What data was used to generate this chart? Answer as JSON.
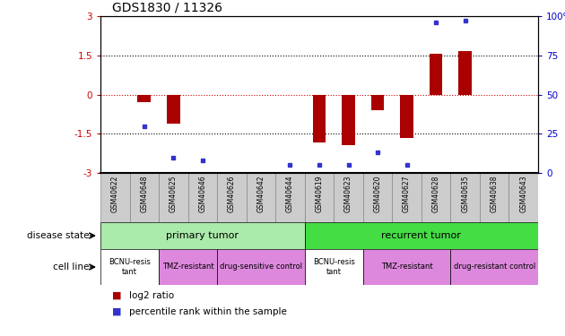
{
  "title": "GDS1830 / 11326",
  "samples": [
    "GSM40622",
    "GSM40648",
    "GSM40625",
    "GSM40646",
    "GSM40626",
    "GSM40642",
    "GSM40644",
    "GSM40619",
    "GSM40623",
    "GSM40620",
    "GSM40627",
    "GSM40628",
    "GSM40635",
    "GSM40638",
    "GSM40643"
  ],
  "log2_ratio": [
    0,
    -0.3,
    -1.1,
    0,
    0,
    0,
    0,
    -1.85,
    -1.95,
    -0.6,
    -1.65,
    1.55,
    1.65,
    0,
    0
  ],
  "percentile_rank": [
    null,
    30,
    10,
    8,
    null,
    null,
    5,
    5,
    5,
    13,
    5,
    96,
    97,
    null,
    null
  ],
  "ylim": [
    -3,
    3
  ],
  "y_left_ticks": [
    -3,
    -1.5,
    0,
    1.5,
    3
  ],
  "y_right_ticks": [
    0,
    25,
    50,
    75,
    100
  ],
  "bar_color": "#aa0000",
  "dot_color": "#3333cc",
  "disease_state_groups": [
    {
      "label": "primary tumor",
      "start": 0,
      "end": 7,
      "color": "#aaeaaa"
    },
    {
      "label": "recurrent tumor",
      "start": 7,
      "end": 15,
      "color": "#44dd44"
    }
  ],
  "cell_line_groups": [
    {
      "label": "BCNU-resis\ntant",
      "start": 0,
      "end": 2,
      "color": "#ffffff"
    },
    {
      "label": "TMZ-resistant",
      "start": 2,
      "end": 4,
      "color": "#dd88dd"
    },
    {
      "label": "drug-sensitive control",
      "start": 4,
      "end": 7,
      "color": "#dd88dd"
    },
    {
      "label": "BCNU-resis\ntant",
      "start": 7,
      "end": 9,
      "color": "#ffffff"
    },
    {
      "label": "TMZ-resistant",
      "start": 9,
      "end": 12,
      "color": "#dd88dd"
    },
    {
      "label": "drug-resistant control",
      "start": 12,
      "end": 15,
      "color": "#dd88dd"
    }
  ],
  "label_disease_state": "disease state",
  "label_cell_line": "cell line",
  "legend_log2": "log2 ratio",
  "legend_pct": "percentile rank within the sample",
  "tick_color_left": "#cc0000",
  "tick_color_right": "#0000cc",
  "sample_box_color": "#cccccc",
  "sample_box_edge": "#888888"
}
